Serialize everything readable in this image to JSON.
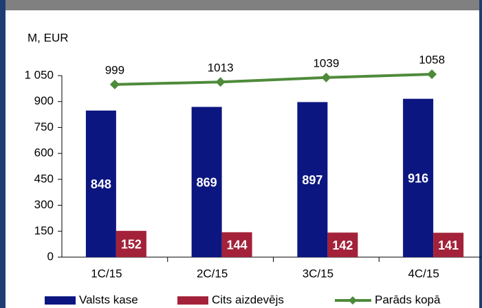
{
  "chart_data": {
    "type": "bar",
    "y_label": "M, EUR",
    "categories": [
      "1C/15",
      "2C/15",
      "3C/15",
      "4C/15"
    ],
    "series": [
      {
        "name": "Valsts kase",
        "color": "#0c1680",
        "values": [
          848,
          869,
          897,
          916
        ]
      },
      {
        "name": "Cits aizdevējs",
        "color": "#a3223a",
        "values": [
          152,
          144,
          142,
          141
        ]
      },
      {
        "name": "Parāds kopā",
        "color": "#4e8a3a",
        "type": "line",
        "values": [
          999,
          1013,
          1039,
          1058
        ]
      }
    ],
    "ylim": [
      0,
      1050
    ],
    "yticks": [
      0,
      150,
      300,
      450,
      600,
      750,
      900,
      {
        "value": 1050,
        "label": "1 050"
      }
    ]
  }
}
